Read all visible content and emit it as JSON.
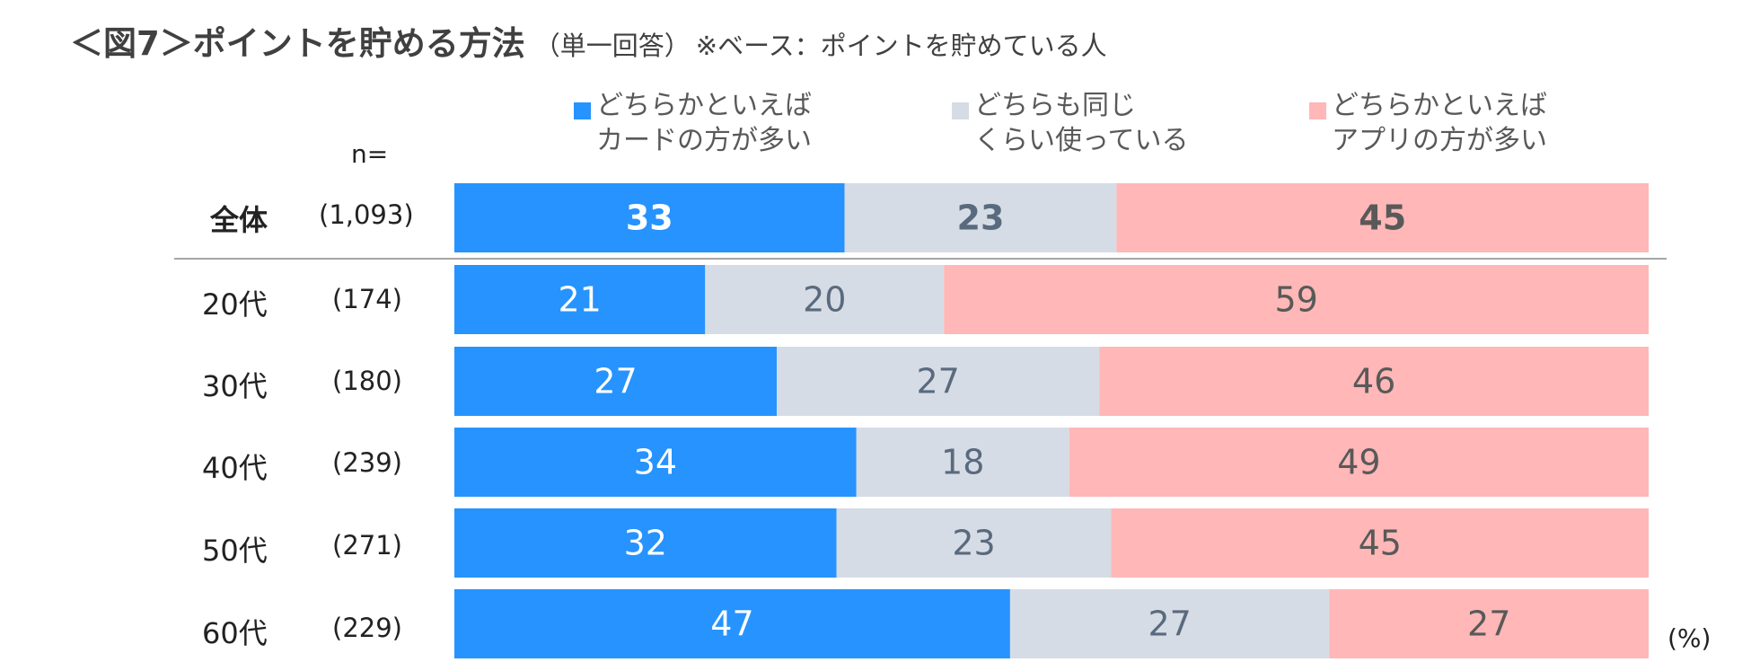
{
  "title": {
    "main": "＜図7＞ポイントを貯める方法",
    "sub": "（単一回答）",
    "note": "※ベース：ポイントを貯めている人"
  },
  "n_header": "n=",
  "unit": "(%)",
  "colors": {
    "card": "#2693ff",
    "same": "#d6dce5",
    "app": "#ffb7b7",
    "card_text": "#ffffff",
    "same_text": "#5a6a7e",
    "app_text": "#595959",
    "divider": "#a6a6a6"
  },
  "chart_data": {
    "type": "bar",
    "orientation": "horizontal",
    "stacked": true,
    "normalized": true,
    "title": "＜図7＞ポイントを貯める方法",
    "xlabel": "",
    "ylabel": "",
    "unit": "(%)",
    "legend_position": "top",
    "categories": [
      "全体",
      "20代",
      "30代",
      "40代",
      "50代",
      "60代"
    ],
    "sample_sizes": [
      "(1,093)",
      "(174)",
      "(180)",
      "(239)",
      "(271)",
      "(229)"
    ],
    "series": [
      {
        "name": "どちらかといえばカードの方が多い",
        "legend_lines": [
          "どちらかといえば",
          "カードの方が多い"
        ],
        "values": [
          33,
          21,
          27,
          34,
          32,
          47
        ]
      },
      {
        "name": "どちらも同じくらい使っている",
        "legend_lines": [
          "どちらも同じ",
          "くらい使っている"
        ],
        "values": [
          23,
          20,
          27,
          18,
          23,
          27
        ]
      },
      {
        "name": "どちらかといえばアプリの方が多い",
        "legend_lines": [
          "どちらかといえば",
          "アプリの方が多い"
        ],
        "values": [
          45,
          59,
          46,
          49,
          45,
          27
        ]
      }
    ]
  }
}
